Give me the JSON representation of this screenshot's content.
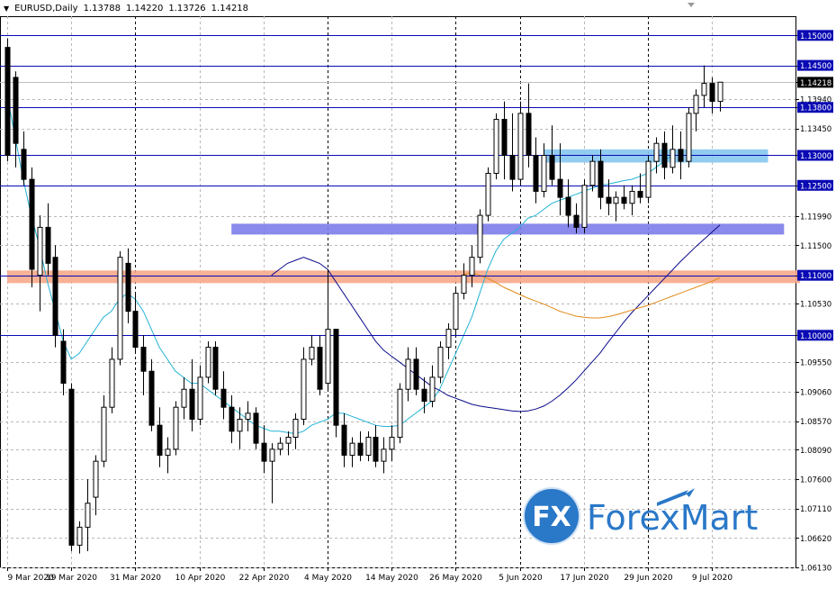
{
  "header": {
    "symbol": "EURUSD,Daily",
    "open": "1.13788",
    "high": "1.14220",
    "low": "1.13726",
    "close": "1.14218"
  },
  "logo": {
    "fx": "FX",
    "text": "ForexMart"
  },
  "colors": {
    "bull_candle": "#ffffff",
    "bear_candle": "#000000",
    "ma_fast": "#23b3d4",
    "ma_mid": "#0b0b8a",
    "ma_slow": "#e08a1a",
    "level_line": "#0a0ab4",
    "zone_light_blue": "#86c6ee",
    "zone_purple": "#7d7dea",
    "zone_orange": "#f6a98a",
    "logo_blue": "#2a78c8"
  },
  "chart_data": {
    "type": "candlestick",
    "symbol": "EURUSD",
    "timeframe": "Daily",
    "ylim": [
      1.0613,
      1.1532
    ],
    "y_ticks": [
      "1.15000",
      "1.14500",
      "1.14218",
      "1.13940",
      "1.13800",
      "1.13450",
      "1.13000",
      "1.12500",
      "1.11990",
      "1.11500",
      "1.11000",
      "1.10530",
      "1.10000",
      "1.09550",
      "1.09060",
      "1.08570",
      "1.08090",
      "1.07600",
      "1.07110",
      "1.06620",
      "1.06130"
    ],
    "x_ticks": [
      {
        "label": "9 Mar 2020",
        "i": 0
      },
      {
        "label": "19 Mar 2020",
        "i": 8
      },
      {
        "label": "31 Mar 2020",
        "i": 16
      },
      {
        "label": "10 Apr 2020",
        "i": 24
      },
      {
        "label": "22 Apr 2020",
        "i": 32
      },
      {
        "label": "4 May 2020",
        "i": 40
      },
      {
        "label": "14 May 2020",
        "i": 48
      },
      {
        "label": "26 May 2020",
        "i": 56
      },
      {
        "label": "5 Jun 2020",
        "i": 64
      },
      {
        "label": "17 Jun 2020",
        "i": 72
      },
      {
        "label": "29 Jun 2020",
        "i": 80
      },
      {
        "label": "9 Jul 2020",
        "i": 88
      }
    ],
    "levels": [
      {
        "price": 1.15,
        "label": "1.15000"
      },
      {
        "price": 1.145,
        "label": "1.14500"
      },
      {
        "price": 1.138,
        "label": "1.13800"
      },
      {
        "price": 1.13,
        "label": "1.13000"
      },
      {
        "price": 1.125,
        "label": "1.12500"
      },
      {
        "price": 1.11,
        "label": "1.11000"
      },
      {
        "price": 1.1,
        "label": "1.10000"
      }
    ],
    "current_price": {
      "price": 1.14218,
      "label": "1.14218"
    },
    "zones": [
      {
        "color": "zone_light_blue",
        "i0": 67,
        "i1": 95,
        "p0": 1.1288,
        "p1": 1.131
      },
      {
        "color": "zone_purple",
        "i0": 28,
        "i1": 97,
        "p0": 1.1168,
        "p1": 1.1186
      },
      {
        "color": "zone_orange",
        "i0": 0,
        "i1": 99,
        "p0": 1.1087,
        "p1": 1.1108
      }
    ],
    "candles": [
      [
        1.148,
        1.1495,
        1.129,
        1.13
      ],
      [
        1.143,
        1.144,
        1.128,
        1.132
      ],
      [
        1.131,
        1.134,
        1.125,
        1.126
      ],
      [
        1.126,
        1.128,
        1.108,
        1.111
      ],
      [
        1.11,
        1.12,
        1.104,
        1.118
      ],
      [
        1.118,
        1.122,
        1.11,
        1.112
      ],
      [
        1.113,
        1.115,
        1.098,
        1.1
      ],
      [
        1.099,
        1.101,
        1.09,
        1.092
      ],
      [
        1.091,
        1.092,
        1.064,
        1.065
      ],
      [
        1.065,
        1.069,
        1.0636,
        1.068
      ],
      [
        1.068,
        1.076,
        1.064,
        1.072
      ],
      [
        1.073,
        1.08,
        1.07,
        1.079
      ],
      [
        1.079,
        1.09,
        1.078,
        1.088
      ],
      [
        1.088,
        1.098,
        1.087,
        1.096
      ],
      [
        1.096,
        1.114,
        1.095,
        1.113
      ],
      [
        1.112,
        1.1145,
        1.102,
        1.104
      ],
      [
        1.104,
        1.107,
        1.097,
        1.098
      ],
      [
        1.098,
        1.1,
        1.09,
        1.094
      ],
      [
        1.094,
        1.096,
        1.084,
        1.085
      ],
      [
        1.085,
        1.088,
        1.078,
        1.08
      ],
      [
        1.08,
        1.083,
        1.077,
        1.081
      ],
      [
        1.081,
        1.089,
        1.08,
        1.088
      ],
      [
        1.088,
        1.093,
        1.086,
        1.091
      ],
      [
        1.091,
        1.096,
        1.084,
        1.086
      ],
      [
        1.086,
        1.095,
        1.085,
        1.093
      ],
      [
        1.093,
        1.099,
        1.092,
        1.098
      ],
      [
        1.098,
        1.099,
        1.09,
        1.091
      ],
      [
        1.091,
        1.094,
        1.086,
        1.088
      ],
      [
        1.088,
        1.09,
        1.082,
        1.084
      ],
      [
        1.084,
        1.088,
        1.081,
        1.086
      ],
      [
        1.086,
        1.089,
        1.084,
        1.087
      ],
      [
        1.087,
        1.088,
        1.081,
        1.082
      ],
      [
        1.082,
        1.085,
        1.077,
        1.079
      ],
      [
        1.079,
        1.082,
        1.072,
        1.081
      ],
      [
        1.081,
        1.083,
        1.08,
        1.082
      ],
      [
        1.082,
        1.084,
        1.08,
        1.083
      ],
      [
        1.083,
        1.087,
        1.081,
        1.086
      ],
      [
        1.086,
        1.098,
        1.085,
        1.096
      ],
      [
        1.096,
        1.1,
        1.095,
        1.098
      ],
      [
        1.098,
        1.1,
        1.09,
        1.091
      ],
      [
        1.092,
        1.111,
        1.091,
        1.101
      ],
      [
        1.101,
        1.101,
        1.083,
        1.085
      ],
      [
        1.085,
        1.087,
        1.078,
        1.08
      ],
      [
        1.08,
        1.083,
        1.078,
        1.082
      ],
      [
        1.082,
        1.084,
        1.079,
        1.08
      ],
      [
        1.08,
        1.084,
        1.079,
        1.083
      ],
      [
        1.083,
        1.085,
        1.078,
        1.079
      ],
      [
        1.079,
        1.083,
        1.077,
        1.081
      ],
      [
        1.081,
        1.085,
        1.079,
        1.083
      ],
      [
        1.083,
        1.092,
        1.082,
        1.091
      ],
      [
        1.091,
        1.098,
        1.089,
        1.096
      ],
      [
        1.096,
        1.098,
        1.09,
        1.091
      ],
      [
        1.091,
        1.093,
        1.087,
        1.089
      ],
      [
        1.089,
        1.095,
        1.088,
        1.093
      ],
      [
        1.093,
        1.099,
        1.092,
        1.098
      ],
      [
        1.098,
        1.102,
        1.096,
        1.101
      ],
      [
        1.101,
        1.108,
        1.1,
        1.107
      ],
      [
        1.107,
        1.112,
        1.106,
        1.11
      ],
      [
        1.11,
        1.115,
        1.108,
        1.113
      ],
      [
        1.113,
        1.121,
        1.112,
        1.12
      ],
      [
        1.12,
        1.128,
        1.119,
        1.127
      ],
      [
        1.127,
        1.137,
        1.126,
        1.136
      ],
      [
        1.136,
        1.139,
        1.126,
        1.13
      ],
      [
        1.13,
        1.137,
        1.124,
        1.126
      ],
      [
        1.126,
        1.139,
        1.125,
        1.137
      ],
      [
        1.137,
        1.142,
        1.128,
        1.13
      ],
      [
        1.13,
        1.133,
        1.122,
        1.124
      ],
      [
        1.124,
        1.132,
        1.123,
        1.13
      ],
      [
        1.13,
        1.135,
        1.125,
        1.126
      ],
      [
        1.126,
        1.132,
        1.12,
        1.123
      ],
      [
        1.123,
        1.126,
        1.118,
        1.12
      ],
      [
        1.12,
        1.122,
        1.117,
        1.118
      ],
      [
        1.118,
        1.126,
        1.117,
        1.125
      ],
      [
        1.125,
        1.13,
        1.124,
        1.129
      ],
      [
        1.129,
        1.131,
        1.121,
        1.123
      ],
      [
        1.123,
        1.126,
        1.12,
        1.122
      ],
      [
        1.122,
        1.124,
        1.119,
        1.123
      ],
      [
        1.123,
        1.125,
        1.121,
        1.122
      ],
      [
        1.122,
        1.125,
        1.12,
        1.124
      ],
      [
        1.124,
        1.127,
        1.122,
        1.123
      ],
      [
        1.123,
        1.13,
        1.122,
        1.129
      ],
      [
        1.129,
        1.133,
        1.127,
        1.132
      ],
      [
        1.132,
        1.134,
        1.126,
        1.128
      ],
      [
        1.128,
        1.135,
        1.127,
        1.131
      ],
      [
        1.131,
        1.134,
        1.126,
        1.129
      ],
      [
        1.129,
        1.138,
        1.128,
        1.137
      ],
      [
        1.137,
        1.141,
        1.134,
        1.14
      ],
      [
        1.14,
        1.145,
        1.138,
        1.142
      ],
      [
        1.142,
        1.143,
        1.137,
        1.139
      ],
      [
        1.139,
        1.1422,
        1.1373,
        1.1422
      ]
    ],
    "ma_fast": [
      1.14,
      1.133,
      1.126,
      1.12,
      1.115,
      1.109,
      1.104,
      1.099,
      1.096,
      1.097,
      1.099,
      1.101,
      1.103,
      1.104,
      1.106,
      1.107,
      1.106,
      1.104,
      1.101,
      1.098,
      1.096,
      1.094,
      1.093,
      1.092,
      1.092,
      1.091,
      1.09,
      1.089,
      1.088,
      1.087,
      1.086,
      1.085,
      1.0845,
      1.084,
      1.084,
      1.0838,
      1.0836,
      1.084,
      1.085,
      1.0855,
      1.086,
      1.087,
      1.087,
      1.0865,
      1.086,
      1.0855,
      1.085,
      1.0848,
      1.0848,
      1.085,
      1.086,
      1.087,
      1.088,
      1.089,
      1.091,
      1.094,
      1.097,
      1.1,
      1.103,
      1.107,
      1.111,
      1.114,
      1.116,
      1.117,
      1.118,
      1.1195,
      1.12,
      1.121,
      1.122,
      1.1225,
      1.123,
      1.1235,
      1.124,
      1.1245,
      1.125,
      1.1252,
      1.1255,
      1.1258,
      1.126,
      1.1265,
      1.127,
      1.128,
      1.129,
      1.13
    ],
    "ma_mid": [
      1.11,
      1.111,
      1.112,
      1.1125,
      1.113,
      1.1125,
      1.112,
      1.111,
      1.109,
      1.107,
      1.105,
      1.103,
      1.101,
      1.099,
      1.0975,
      1.0965,
      1.0955,
      1.0945,
      1.0935,
      1.0925,
      1.0915,
      1.0908,
      1.09,
      1.0895,
      1.089,
      1.0885,
      1.0882,
      1.088,
      1.0878,
      1.0876,
      1.0874,
      1.0873,
      1.0874,
      1.0877,
      1.0882,
      1.089,
      1.09,
      1.0912,
      1.0925,
      1.094,
      1.0955,
      1.097,
      1.0988,
      1.1005,
      1.1022,
      1.1038,
      1.1052,
      1.1066,
      1.108,
      1.1094,
      1.1108,
      1.1122,
      1.1135,
      1.1148,
      1.116,
      1.1172,
      1.1184
    ],
    "ma_slow": [
      1.1102,
      1.1104,
      1.11,
      1.1095,
      1.1088,
      1.108,
      1.1074,
      1.1068,
      1.1062,
      1.1057,
      1.1052,
      1.1046,
      1.104,
      1.1036,
      1.1032,
      1.103,
      1.1029,
      1.1029,
      1.1031,
      1.1034,
      1.1038,
      1.1042,
      1.1046,
      1.105,
      1.1055,
      1.106,
      1.1065,
      1.107,
      1.1075,
      1.108,
      1.1085,
      1.109,
      1.1096
    ]
  }
}
